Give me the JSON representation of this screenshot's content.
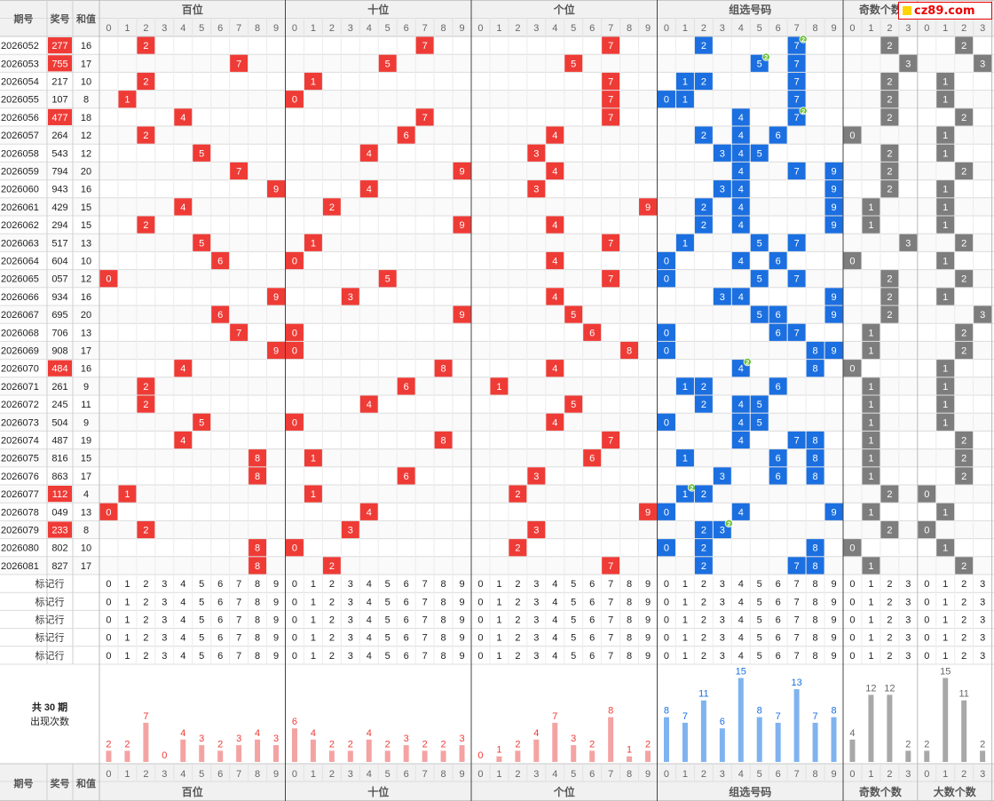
{
  "header": {
    "period": "期号",
    "prize": "奖号",
    "sum": "和值",
    "groups": [
      "百位",
      "十位",
      "个位",
      "组选号码",
      "奇数个数"
    ],
    "footer_groups": [
      "百位",
      "十位",
      "个位",
      "组选号码",
      "奇数个数",
      "大数个数"
    ],
    "digits": [
      "0",
      "1",
      "2",
      "3",
      "4",
      "5",
      "6",
      "7",
      "8",
      "9"
    ],
    "counts": [
      "0",
      "1",
      "2",
      "3"
    ]
  },
  "logo_text": "cz89.com",
  "rows": [
    {
      "period": "2026052",
      "prize": "277",
      "sum": "16",
      "hi": true
    },
    {
      "period": "2026053",
      "prize": "755",
      "sum": "17",
      "hi": true
    },
    {
      "period": "2026054",
      "prize": "217",
      "sum": "10",
      "hi": false
    },
    {
      "period": "2026055",
      "prize": "107",
      "sum": "8",
      "hi": false
    },
    {
      "period": "2026056",
      "prize": "477",
      "sum": "18",
      "hi": true
    },
    {
      "period": "2026057",
      "prize": "264",
      "sum": "12",
      "hi": false
    },
    {
      "period": "2026058",
      "prize": "543",
      "sum": "12",
      "hi": false
    },
    {
      "period": "2026059",
      "prize": "794",
      "sum": "20",
      "hi": false
    },
    {
      "period": "2026060",
      "prize": "943",
      "sum": "16",
      "hi": false
    },
    {
      "period": "2026061",
      "prize": "429",
      "sum": "15",
      "hi": false
    },
    {
      "period": "2026062",
      "prize": "294",
      "sum": "15",
      "hi": false
    },
    {
      "period": "2026063",
      "prize": "517",
      "sum": "13",
      "hi": false
    },
    {
      "period": "2026064",
      "prize": "604",
      "sum": "10",
      "hi": false
    },
    {
      "period": "2026065",
      "prize": "057",
      "sum": "12",
      "hi": false
    },
    {
      "period": "2026066",
      "prize": "934",
      "sum": "16",
      "hi": false
    },
    {
      "period": "2026067",
      "prize": "695",
      "sum": "20",
      "hi": false
    },
    {
      "period": "2026068",
      "prize": "706",
      "sum": "13",
      "hi": false
    },
    {
      "period": "2026069",
      "prize": "908",
      "sum": "17",
      "hi": false
    },
    {
      "period": "2026070",
      "prize": "484",
      "sum": "16",
      "hi": true
    },
    {
      "period": "2026071",
      "prize": "261",
      "sum": "9",
      "hi": false
    },
    {
      "period": "2026072",
      "prize": "245",
      "sum": "11",
      "hi": false
    },
    {
      "period": "2026073",
      "prize": "504",
      "sum": "9",
      "hi": false
    },
    {
      "period": "2026074",
      "prize": "487",
      "sum": "19",
      "hi": false
    },
    {
      "period": "2026075",
      "prize": "816",
      "sum": "15",
      "hi": false
    },
    {
      "period": "2026076",
      "prize": "863",
      "sum": "17",
      "hi": false
    },
    {
      "period": "2026077",
      "prize": "112",
      "sum": "4",
      "hi": true
    },
    {
      "period": "2026078",
      "prize": "049",
      "sum": "13",
      "hi": false
    },
    {
      "period": "2026079",
      "prize": "233",
      "sum": "8",
      "hi": true
    },
    {
      "period": "2026080",
      "prize": "802",
      "sum": "10",
      "hi": false
    },
    {
      "period": "2026081",
      "prize": "827",
      "sum": "17",
      "hi": false
    }
  ],
  "marker_label": "标记行",
  "marker_rows": 5,
  "stats_label": "共 30 期\n出现次数",
  "repeat_badge": "2",
  "colors": {
    "red": "#ef3b36",
    "blue": "#1b6fe0",
    "gray": "#7d7d7d",
    "bar_red": "#f4a3a3",
    "bar_blue": "#7fb3ef",
    "bar_gray": "#a8a8a8",
    "badge": "#6cc13a"
  },
  "chart_data": {
    "type": "bar",
    "title": "共 30 期 出现次数",
    "series": [
      {
        "name": "百位",
        "categories": [
          "0",
          "1",
          "2",
          "3",
          "4",
          "5",
          "6",
          "7",
          "8",
          "9"
        ],
        "values": [
          2,
          2,
          7,
          0,
          4,
          3,
          2,
          3,
          4,
          3
        ]
      },
      {
        "name": "十位",
        "categories": [
          "0",
          "1",
          "2",
          "3",
          "4",
          "5",
          "6",
          "7",
          "8",
          "9"
        ],
        "values": [
          6,
          4,
          2,
          2,
          4,
          2,
          3,
          2,
          2,
          3
        ]
      },
      {
        "name": "个位",
        "categories": [
          "0",
          "1",
          "2",
          "3",
          "4",
          "5",
          "6",
          "7",
          "8",
          "9"
        ],
        "values": [
          0,
          1,
          2,
          4,
          7,
          3,
          2,
          8,
          1,
          2
        ]
      },
      {
        "name": "组选号码",
        "categories": [
          "0",
          "1",
          "2",
          "3",
          "4",
          "5",
          "6",
          "7",
          "8",
          "9"
        ],
        "values": [
          8,
          7,
          11,
          6,
          15,
          8,
          7,
          13,
          7,
          8
        ]
      },
      {
        "name": "奇数个数",
        "categories": [
          "0",
          "1",
          "2",
          "3"
        ],
        "values": [
          4,
          12,
          12,
          2
        ]
      },
      {
        "name": "大数个数",
        "categories": [
          "0",
          "1",
          "2",
          "3"
        ],
        "values": [
          2,
          15,
          11,
          2
        ]
      }
    ]
  }
}
